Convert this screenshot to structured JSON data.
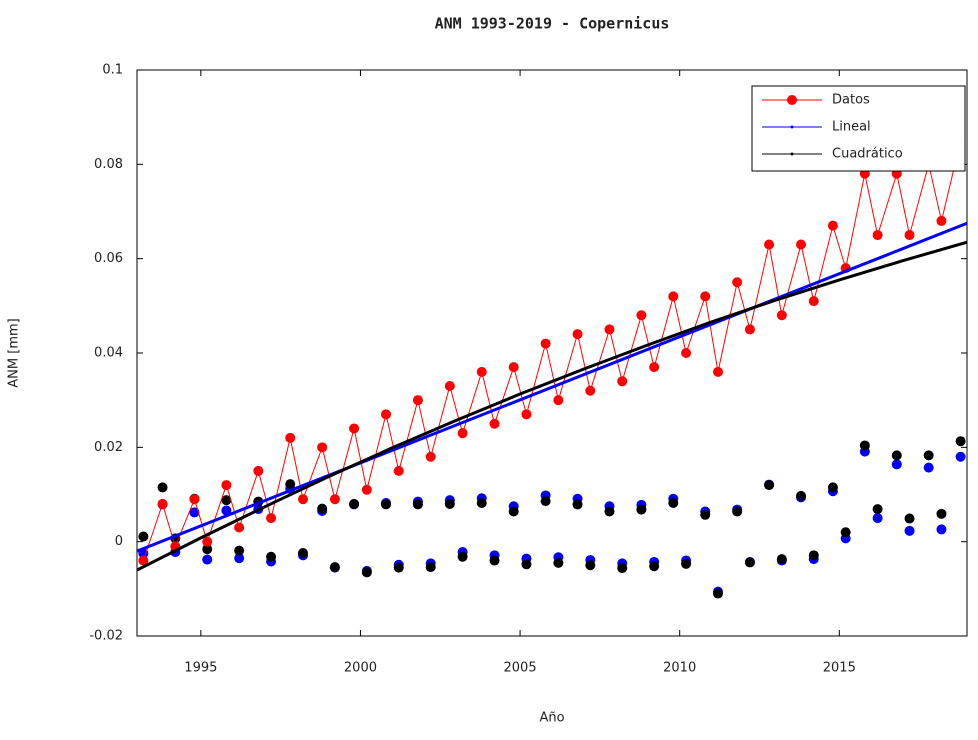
{
  "chart_data": {
    "type": "line",
    "title": "ANM 1993-2019 - Copernicus",
    "xlabel": "Año",
    "ylabel": "ANM [mm]",
    "xlim": [
      1993,
      2019
    ],
    "ylim": [
      -0.02,
      0.1
    ],
    "xticks": [
      1995,
      2000,
      2005,
      2010,
      2015
    ],
    "yticks": [
      -0.02,
      0,
      0.02,
      0.04,
      0.06,
      0.08,
      0.1
    ],
    "legend": "upper-right",
    "x": [
      1993.2,
      1993.8,
      1994.2,
      1994.8,
      1995.2,
      1995.8,
      1996.2,
      1996.8,
      1997.2,
      1997.8,
      1998.2,
      1998.8,
      1999.2,
      1999.8,
      2000.2,
      2000.8,
      2001.2,
      2001.8,
      2002.2,
      2002.8,
      2003.2,
      2003.8,
      2004.2,
      2004.8,
      2005.2,
      2005.8,
      2006.2,
      2006.8,
      2007.2,
      2007.8,
      2008.2,
      2008.8,
      2009.2,
      2009.8,
      2010.2,
      2010.8,
      2011.2,
      2011.8,
      2012.2,
      2012.8,
      2013.2,
      2013.8,
      2014.2,
      2014.8,
      2015.2,
      2015.8,
      2016.2,
      2016.8,
      2017.2,
      2017.8,
      2018.2,
      2018.8
    ],
    "series": [
      {
        "name": "Datos",
        "color": "#ff0000",
        "values": [
          -0.004,
          0.008,
          -0.001,
          0.009,
          0.0,
          0.012,
          0.003,
          0.015,
          0.005,
          0.022,
          0.009,
          0.02,
          0.009,
          0.024,
          0.011,
          0.027,
          0.015,
          0.03,
          0.018,
          0.033,
          0.023,
          0.036,
          0.025,
          0.037,
          0.027,
          0.042,
          0.03,
          0.044,
          0.032,
          0.045,
          0.034,
          0.048,
          0.037,
          0.052,
          0.04,
          0.052,
          0.036,
          0.055,
          0.045,
          0.063,
          0.048,
          0.063,
          0.051,
          0.067,
          0.058,
          0.078,
          0.065,
          0.078,
          0.065,
          0.08,
          0.068,
          0.085
        ]
      },
      {
        "name": "Lineal",
        "color": "#0000ff",
        "fit": {
          "x": [
            1993,
            2019
          ],
          "values": [
            -0.002,
            0.0675
          ]
        },
        "residuals": [
          -0.0025,
          0.0079,
          -0.0022,
          0.0062,
          -0.0038,
          0.0066,
          -0.0035,
          0.0069,
          -0.0042,
          0.0112,
          -0.0029,
          0.0065,
          -0.0055,
          0.0079,
          -0.0062,
          0.0082,
          -0.0049,
          0.0085,
          -0.0046,
          0.0088,
          -0.0022,
          0.0092,
          -0.0029,
          0.0075,
          -0.0036,
          0.0098,
          -0.0033,
          0.0091,
          -0.0039,
          0.0075,
          -0.0046,
          0.0078,
          -0.0043,
          0.0091,
          -0.004,
          0.0064,
          -0.0106,
          0.0068,
          -0.0043,
          0.0121,
          -0.004,
          0.0094,
          -0.0037,
          0.0107,
          0.0007,
          0.0191,
          0.005,
          0.0164,
          0.0023,
          0.0157,
          0.0026,
          0.018
        ]
      },
      {
        "name": "Cuadrático",
        "color": "#000000",
        "fit": {
          "x": [
            1993,
            1995,
            1997,
            1999,
            2001,
            2003,
            2005,
            2007,
            2009,
            2011,
            2013,
            2015,
            2017,
            2019
          ],
          "values": [
            -0.006,
            0.0008,
            0.0074,
            0.0138,
            0.0199,
            0.0257,
            0.0313,
            0.0366,
            0.0417,
            0.0466,
            0.0512,
            0.0555,
            0.0596,
            0.0635
          ]
        },
        "residuals": [
          0.0011,
          0.0115,
          0.0007,
          0.0091,
          -0.0016,
          0.0088,
          -0.0019,
          0.0085,
          -0.0032,
          0.0122,
          -0.0024,
          0.007,
          -0.0054,
          0.008,
          -0.0065,
          0.0079,
          -0.0055,
          0.0079,
          -0.0054,
          0.008,
          -0.0032,
          0.0082,
          -0.004,
          0.0064,
          -0.0048,
          0.0086,
          -0.0045,
          0.0079,
          -0.005,
          0.0064,
          -0.0056,
          0.0068,
          -0.0052,
          0.0082,
          -0.0047,
          0.0057,
          -0.011,
          0.0064,
          -0.0044,
          0.012,
          -0.0037,
          0.0097,
          -0.0029,
          0.0115,
          0.002,
          0.0204,
          0.0069,
          0.0183,
          0.0049,
          0.0183,
          0.0059,
          0.0213
        ]
      }
    ]
  }
}
